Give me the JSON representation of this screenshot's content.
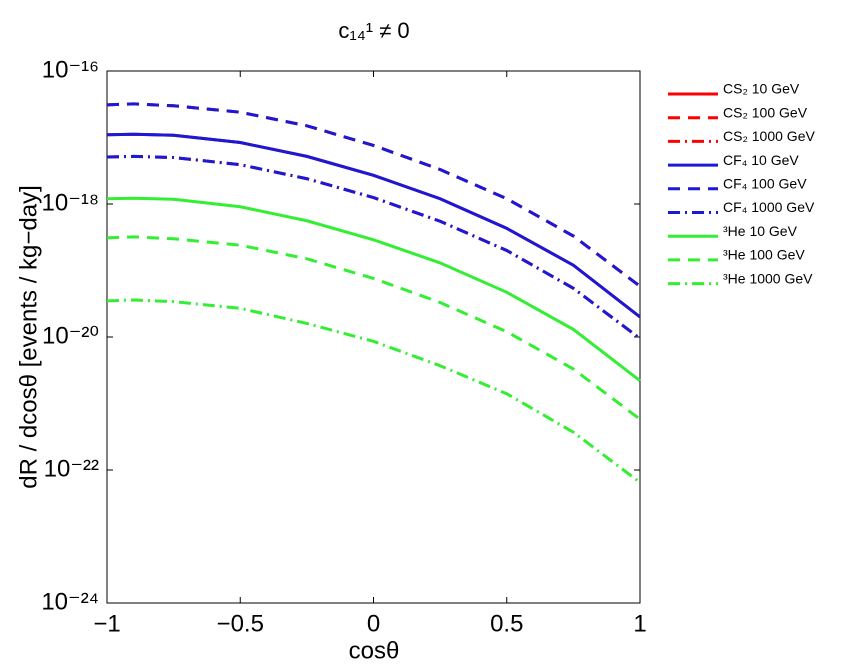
{
  "chart_data": {
    "type": "line",
    "title": "c₁₄¹ ≠ 0",
    "x_label": "cosθ",
    "y_label": "dR / dcosθ  [events / kg−day]",
    "x": [
      -1,
      -0.9,
      -0.75,
      -0.5,
      -0.25,
      0,
      0.25,
      0.5,
      0.75,
      1
    ],
    "xlim": [
      -1,
      1
    ],
    "xticks": [
      {
        "value": -1,
        "label": "−1"
      },
      {
        "value": -0.5,
        "label": "−0.5"
      },
      0,
      0.5,
      1
    ],
    "ylim": [
      1e-24,
      1e-16
    ],
    "yticks": [
      {
        "value": 1e-24,
        "label": "10⁻²⁴"
      },
      {
        "value": 1e-22,
        "label": "10⁻²²"
      },
      {
        "value": 1e-20,
        "label": "10⁻²⁰"
      },
      {
        "value": 1e-18,
        "label": "10⁻¹⁸"
      },
      {
        "value": 1e-16,
        "label": "10⁻¹⁶"
      }
    ],
    "y_scale": "log",
    "grid": false,
    "legend": "outside-right",
    "series": [
      {
        "name": "CS₂ 10 GeV",
        "color": "#ff0000",
        "dash": "solid",
        "values": [
          1.1e-17,
          1.12e-17,
          1.08e-17,
          8.4e-18,
          5.2e-18,
          2.7e-18,
          1.2e-18,
          4.3e-19,
          1.2e-19,
          2e-20
        ]
      },
      {
        "name": "CS₂ 100 GeV",
        "color": "#ff0000",
        "dash": "dashed",
        "values": [
          3.1e-17,
          3.2e-17,
          3e-17,
          2.4e-17,
          1.5e-17,
          7.6e-18,
          3.3e-18,
          1.2e-18,
          3.3e-19,
          5.8e-20
        ]
      },
      {
        "name": "CS₂ 1000 GeV",
        "color": "#ff0000",
        "dash": "dashdot",
        "values": [
          5.1e-18,
          5.2e-18,
          5e-18,
          3.9e-18,
          2.4e-18,
          1.25e-18,
          5.5e-19,
          2e-19,
          5.4e-20,
          9.5e-21
        ]
      },
      {
        "name": "CF₄ 10 GeV",
        "color": "#1a1ad6",
        "dash": "solid",
        "values": [
          1.1e-17,
          1.12e-17,
          1.08e-17,
          8.4e-18,
          5.2e-18,
          2.7e-18,
          1.2e-18,
          4.3e-19,
          1.2e-19,
          2e-20
        ]
      },
      {
        "name": "CF₄ 100 GeV",
        "color": "#1a1ad6",
        "dash": "dashed",
        "values": [
          3.1e-17,
          3.2e-17,
          3e-17,
          2.4e-17,
          1.5e-17,
          7.6e-18,
          3.3e-18,
          1.2e-18,
          3.3e-19,
          5.8e-20
        ]
      },
      {
        "name": "CF₄ 1000 GeV",
        "color": "#1a1ad6",
        "dash": "dashdot",
        "values": [
          5.1e-18,
          5.2e-18,
          5e-18,
          3.9e-18,
          2.4e-18,
          1.25e-18,
          5.5e-19,
          2e-19,
          5.4e-20,
          9.5e-21
        ]
      },
      {
        "name": "³He 10 GeV",
        "color": "#33ee33",
        "dash": "solid",
        "values": [
          1.2e-18,
          1.22e-18,
          1.18e-18,
          9.1e-19,
          5.6e-19,
          2.9e-19,
          1.3e-19,
          4.7e-20,
          1.3e-20,
          2.2e-21
        ]
      },
      {
        "name": "³He 100 GeV",
        "color": "#33ee33",
        "dash": "dashed",
        "values": [
          3.1e-19,
          3.2e-19,
          3e-19,
          2.4e-19,
          1.5e-19,
          7.6e-20,
          3.3e-20,
          1.2e-20,
          3.3e-21,
          5.8e-22
        ]
      },
      {
        "name": "³He 1000 GeV",
        "color": "#33ee33",
        "dash": "dashdot",
        "values": [
          3.5e-20,
          3.6e-20,
          3.4e-20,
          2.7e-20,
          1.6e-20,
          8.6e-21,
          3.7e-21,
          1.4e-21,
          3.7e-22,
          6.5e-23
        ]
      }
    ]
  }
}
